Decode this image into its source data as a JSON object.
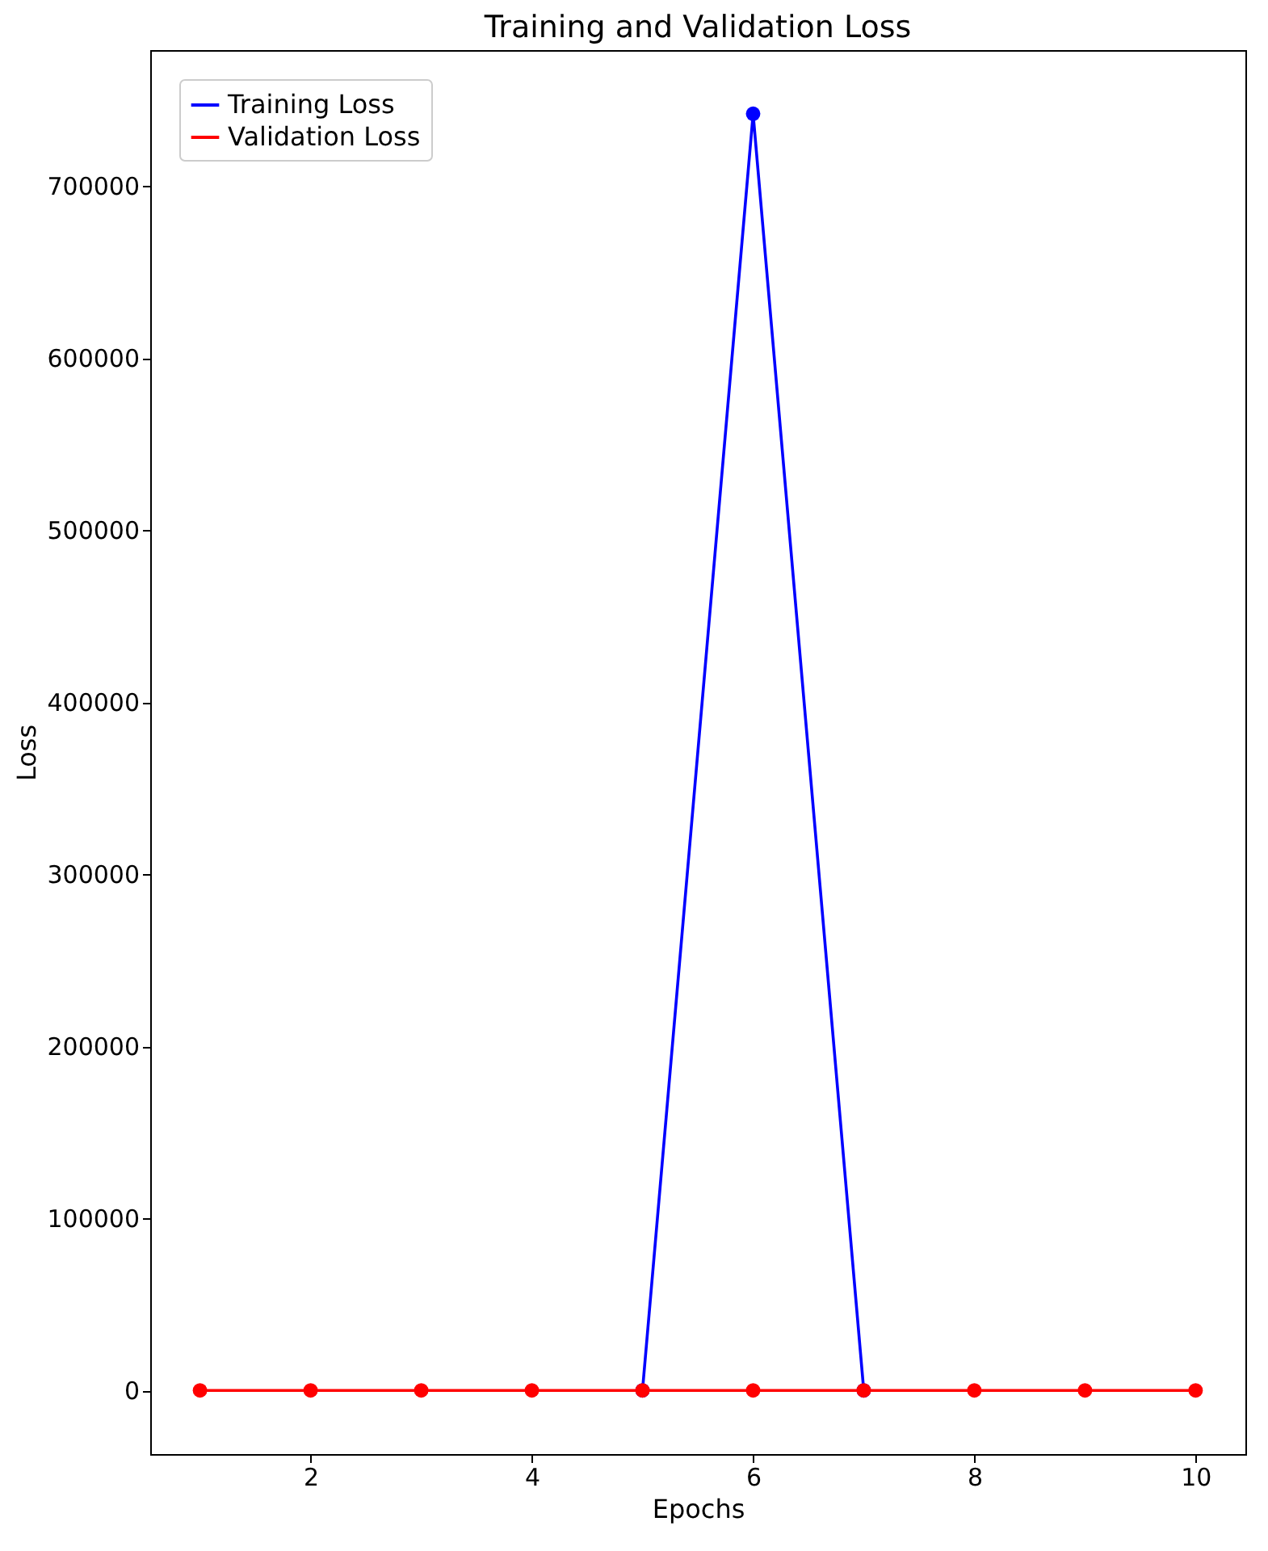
{
  "chart_data": {
    "type": "line",
    "title": "Training and Validation Loss",
    "xlabel": "Epochs",
    "ylabel": "Loss",
    "x": [
      1,
      2,
      3,
      4,
      5,
      6,
      7,
      8,
      9,
      10
    ],
    "series": [
      {
        "name": "Training Loss",
        "color": "#0000ff",
        "values": [
          null,
          null,
          null,
          null,
          0,
          742000,
          0,
          null,
          null,
          null
        ]
      },
      {
        "name": "Validation Loss",
        "color": "#ff0000",
        "values": [
          0,
          0,
          0,
          0,
          0,
          0,
          0,
          0,
          0,
          0
        ]
      }
    ],
    "xlim": [
      0.55,
      10.45
    ],
    "xticks": [
      2,
      4,
      6,
      8,
      10
    ],
    "ylim": [
      -37000,
      779000
    ],
    "yticks": [
      0,
      100000,
      200000,
      300000,
      400000,
      500000,
      600000,
      700000
    ],
    "legend": "top left",
    "marker": "circle",
    "line_style": "solid",
    "grid": false
  }
}
